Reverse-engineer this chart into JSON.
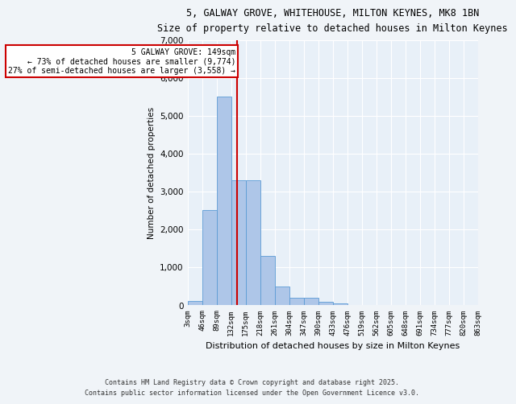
{
  "title_line1": "5, GALWAY GROVE, WHITEHOUSE, MILTON KEYNES, MK8 1BN",
  "title_line2": "Size of property relative to detached houses in Milton Keynes",
  "xlabel": "Distribution of detached houses by size in Milton Keynes",
  "ylabel": "Number of detached properties",
  "bin_labels": [
    "3sqm",
    "46sqm",
    "89sqm",
    "132sqm",
    "175sqm",
    "218sqm",
    "261sqm",
    "304sqm",
    "347sqm",
    "390sqm",
    "433sqm",
    "476sqm",
    "519sqm",
    "562sqm",
    "605sqm",
    "648sqm",
    "691sqm",
    "734sqm",
    "777sqm",
    "820sqm",
    "863sqm"
  ],
  "bar_values": [
    100,
    2500,
    5500,
    3300,
    3300,
    1300,
    500,
    200,
    200,
    90,
    50,
    0,
    0,
    0,
    0,
    0,
    0,
    0,
    0,
    0
  ],
  "bar_color": "#aec6e8",
  "bar_edgecolor": "#5b9bd5",
  "vline_color": "#cc0000",
  "annotation_title": "5 GALWAY GROVE: 149sqm",
  "annotation_line1": "← 73% of detached houses are smaller (9,774)",
  "annotation_line2": "27% of semi-detached houses are larger (3,558) →",
  "annotation_box_edgecolor": "#cc0000",
  "ylim": [
    0,
    7000
  ],
  "yticks": [
    0,
    1000,
    2000,
    3000,
    4000,
    5000,
    6000,
    7000
  ],
  "background_color": "#e8f0f8",
  "grid_color": "#ffffff",
  "footer_line1": "Contains HM Land Registry data © Crown copyright and database right 2025.",
  "footer_line2": "Contains public sector information licensed under the Open Government Licence v3.0."
}
